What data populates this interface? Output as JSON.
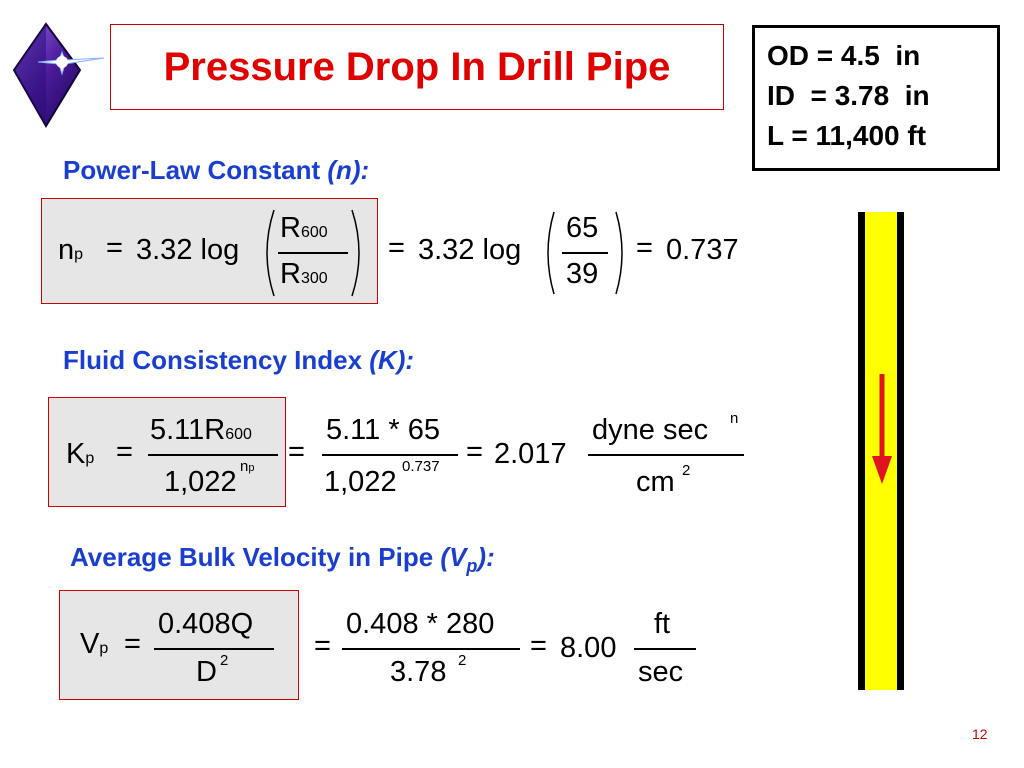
{
  "slide": {
    "title": "Pressure Drop In Drill Pipe",
    "page_number": "12",
    "colors": {
      "title_red": "#e00000",
      "heading_blue": "#1a3fd0",
      "pipe_yellow": "#ffff00",
      "arrow_red": "#e0141e"
    }
  },
  "specs": {
    "od": "OD = 4.5  in",
    "id": "ID  = 3.78  in",
    "length": "L = 11,400 ft"
  },
  "section1": {
    "heading": "Power-Law Constant ",
    "heading_symbol": "(n):",
    "n_base": "n",
    "n_sub": "p",
    "eq1": "=",
    "coef": "3.32 log",
    "r600_base": "R",
    "r600_sub": "600",
    "r300_base": "R",
    "r300_sub": "300",
    "eq2": "=",
    "coef2": "3.32 log",
    "num": "65",
    "den": "39",
    "eq3": "=",
    "result": "0.737"
  },
  "section2": {
    "heading": "Fluid Consistency Index ",
    "heading_symbol": "(K):",
    "k_base": "K",
    "k_sub": "p",
    "eq1": "=",
    "num1": "5.11R",
    "num1_sub": "600",
    "den1": "1,022",
    "den1_exp_base": "n",
    "den1_exp_sub": "p",
    "eq2": "=",
    "num2": "5.11 * 65",
    "den2": "1,022",
    "den2_exp": "0.737",
    "eq3": "=",
    "result": "2.017",
    "unit_num": "dyne sec",
    "unit_num_exp": "n",
    "unit_den": "cm",
    "unit_den_exp": "2"
  },
  "section3": {
    "heading": "Average Bulk Velocity in Pipe ",
    "heading_symbol": "(V",
    "heading_symbol_sub": "p",
    "heading_symbol_end": "):",
    "v_base": "V",
    "v_sub": "p",
    "eq1": "=",
    "num1": "0.408Q",
    "den1": "D",
    "den1_exp": "2",
    "eq2": "=",
    "num2": "0.408 * 280",
    "den2": "3.78",
    "den2_exp": "2",
    "eq3": "=",
    "result": "8.00",
    "unit_num": "ft",
    "unit_den": "sec"
  }
}
